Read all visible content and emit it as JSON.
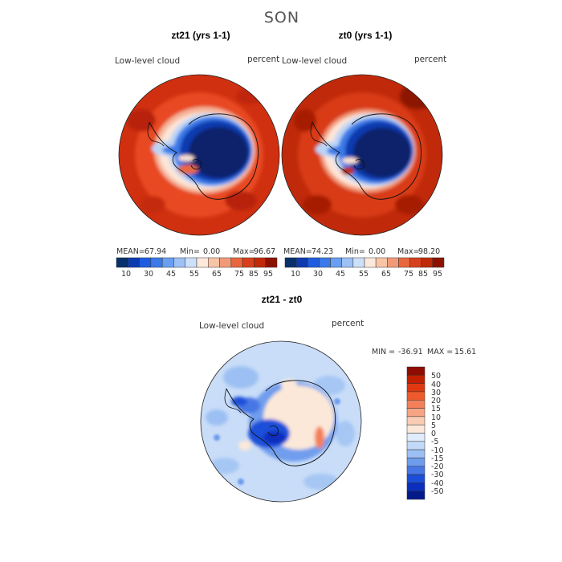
{
  "chart_data": {
    "type": "heatmap",
    "title": "SON",
    "panels": [
      {
        "title": "zt21 (yrs 1-1)",
        "variable": "Low-level cloud",
        "units": "percent",
        "stats": {
          "mean_label": "MEAN=",
          "mean": "67.94",
          "min_label": "Min=",
          "min": "0.00",
          "max_label": "Max=",
          "max": "96.67"
        },
        "colorbar_ticks": [
          "10",
          "30",
          "45",
          "55",
          "65",
          "75",
          "85",
          "95"
        ]
      },
      {
        "title": "zt0 (yrs 1-1)",
        "variable": "Low-level cloud",
        "units": "percent",
        "stats": {
          "mean_label": "MEAN=",
          "mean": "74.23",
          "min_label": "Min=",
          "min": "0.00",
          "max_label": "Max=",
          "max": "98.20"
        },
        "colorbar_ticks": [
          "10",
          "30",
          "45",
          "55",
          "65",
          "75",
          "85",
          "95"
        ]
      },
      {
        "title": "zt21 - zt0",
        "variable": "Low-level cloud",
        "units": "percent",
        "stats": {
          "min_label": "MIN =",
          "min": "-36.91",
          "max_label": "MAX =",
          "max": "15.61"
        },
        "colorbar_ticks": [
          "50",
          "40",
          "30",
          "20",
          "15",
          "10",
          "5",
          "0",
          "-5",
          "-10",
          "-15",
          "-20",
          "-30",
          "-40",
          "-50"
        ]
      }
    ],
    "colors": {
      "abs_scale": [
        "#08306b",
        "#0c3bb0",
        "#1f5de0",
        "#3b7ae8",
        "#6a9ef0",
        "#9dc0f5",
        "#cde0fa",
        "#fde9dc",
        "#f8c4a6",
        "#f29a78",
        "#e8673f",
        "#d8401c",
        "#c02a0a",
        "#8c1200"
      ],
      "diff_scale": [
        "#8e0c00",
        "#c11f00",
        "#e03812",
        "#ef5a2c",
        "#f3805a",
        "#f6a584",
        "#f9ccb3",
        "#fbe8d9",
        "#e0ecfb",
        "#c3d9f8",
        "#9cc0f3",
        "#6f9ded",
        "#4677e4",
        "#1c4fd9",
        "#0a2fbe",
        "#041a8a"
      ],
      "land_outline": "#111111"
    }
  }
}
